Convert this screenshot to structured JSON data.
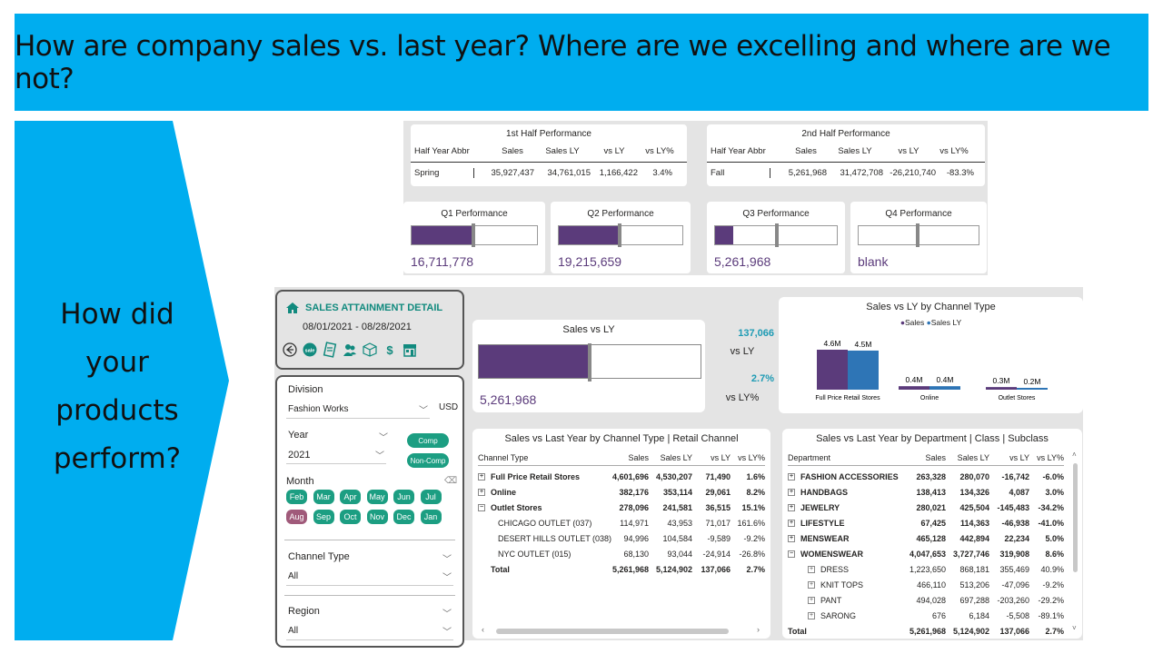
{
  "banner": {
    "title": "How are company sales vs. last year? Where are we excelling and where are we not?"
  },
  "arrow": {
    "text_lines": [
      "How did your",
      "products",
      "perform?"
    ]
  },
  "colors": {
    "banner": "#00adef",
    "purple": "#5b3b7b",
    "teal": "#1c9e82",
    "blue": "#2e75b6",
    "aug": "#a05a7a"
  },
  "half_year": [
    {
      "title": "1st Half Performance",
      "headers": [
        "Half Year Abbr",
        "Sales",
        "Sales LY",
        "vs LY",
        "vs LY%"
      ],
      "row": [
        "Spring",
        "35,927,437",
        "34,761,015",
        "1,166,422",
        "3.4%"
      ]
    },
    {
      "title": "2nd Half Performance",
      "headers": [
        "Half Year Abbr",
        "Sales",
        "Sales LY",
        "vs LY",
        "vs LY%"
      ],
      "row": [
        "Fall",
        "5,261,968",
        "31,472,708",
        "-26,210,740",
        "-83.3%"
      ]
    }
  ],
  "quarters": [
    {
      "title": "Q1 Performance",
      "value": "16,711,778",
      "fill_pct": 49,
      "target_pct": 49
    },
    {
      "title": "Q2 Performance",
      "value": "19,215,659",
      "fill_pct": 49,
      "target_pct": 49
    },
    {
      "title": "Q3 Performance",
      "value": "5,261,968",
      "fill_pct": 15,
      "target_pct": 51
    },
    {
      "title": "Q4 Performance",
      "value": "blank",
      "fill_pct": 0,
      "target_pct": 49
    }
  ],
  "detail": {
    "title": "SALES ATTAINMENT DETAIL",
    "dates": "08/01/2021 - 08/28/2021",
    "nav_icons": [
      "back-icon",
      "sale-icon",
      "invoice-icon",
      "people-icon",
      "box-icon",
      "dollar-icon",
      "store-icon"
    ]
  },
  "filters": {
    "division_label": "Division",
    "division_value": "Fashion Works",
    "currency": "USD",
    "year_label": "Year",
    "year_value": "2021",
    "comp": "Comp",
    "noncomp": "Non-Comp",
    "month_label": "Month",
    "months_row1": [
      "Feb",
      "Mar",
      "Apr",
      "May",
      "Jun",
      "Jul"
    ],
    "months_row2": [
      "Aug",
      "Sep",
      "Oct",
      "Nov",
      "Dec",
      "Jan"
    ],
    "selected_month": "Aug",
    "channel_label": "Channel Type",
    "channel_value": "All",
    "region_label": "Region",
    "region_value": "All"
  },
  "sales_vs_ly": {
    "title": "Sales vs LY",
    "value": "5,261,968",
    "fill_pct": 50,
    "target_pct": 50,
    "kpi1": "137,066",
    "kpi1_label": "vs LY",
    "kpi2": "2.7%",
    "kpi2_label": "vs LY%"
  },
  "chart_data": {
    "type": "bar",
    "title": "Sales vs LY by Channel Type",
    "categories": [
      "Full Price Retail Stores",
      "Online",
      "Outlet Stores"
    ],
    "series": [
      {
        "name": "Sales",
        "values": [
          4.6,
          0.4,
          0.3
        ],
        "labels": [
          "4.6M",
          "0.4M",
          "0.3M"
        ],
        "color": "#5b3b7b"
      },
      {
        "name": "Sales LY",
        "values": [
          4.5,
          0.4,
          0.2
        ],
        "labels": [
          "4.5M",
          "0.4M",
          "0.2M"
        ],
        "color": "#2e75b6"
      }
    ],
    "ylim": [
      0,
      4.6
    ],
    "legend": "top"
  },
  "channel_table": {
    "title": "Sales vs Last Year by Channel Type | Retail Channel",
    "headers": [
      "Channel Type",
      "Sales",
      "Sales LY",
      "vs LY",
      "vs LY%"
    ],
    "rows": [
      {
        "name": "Full Price Retail Stores",
        "vals": [
          "4,601,696",
          "4,530,207",
          "71,490",
          "1.6%"
        ],
        "bold": true,
        "exp": "+",
        "indent": 0
      },
      {
        "name": "Online",
        "vals": [
          "382,176",
          "353,114",
          "29,061",
          "8.2%"
        ],
        "bold": true,
        "exp": "+",
        "indent": 0
      },
      {
        "name": "Outlet Stores",
        "vals": [
          "278,096",
          "241,581",
          "36,515",
          "15.1%"
        ],
        "bold": true,
        "exp": "−",
        "indent": 0
      },
      {
        "name": "CHICAGO OUTLET (037)",
        "vals": [
          "114,971",
          "43,953",
          "71,017",
          "161.6%"
        ],
        "bold": false,
        "exp": "",
        "indent": 1
      },
      {
        "name": "DESERT HILLS OUTLET (038)",
        "vals": [
          "94,996",
          "104,584",
          "-9,589",
          "-9.2%"
        ],
        "bold": false,
        "exp": "",
        "indent": 1
      },
      {
        "name": "NYC OUTLET (015)",
        "vals": [
          "68,130",
          "93,044",
          "-24,914",
          "-26.8%"
        ],
        "bold": false,
        "exp": "",
        "indent": 1
      },
      {
        "name": "Total",
        "vals": [
          "5,261,968",
          "5,124,902",
          "137,066",
          "2.7%"
        ],
        "bold": true,
        "exp": "",
        "indent": 0
      }
    ]
  },
  "dept_table": {
    "title": "Sales vs Last Year by Department | Class | Subclass",
    "headers": [
      "Department",
      "Sales",
      "Sales LY",
      "vs LY",
      "vs LY%"
    ],
    "rows": [
      {
        "name": "FASHION ACCESSORIES",
        "vals": [
          "263,328",
          "280,070",
          "-16,742",
          "-6.0%"
        ],
        "bold": true,
        "exp": "+",
        "indent": 0
      },
      {
        "name": "HANDBAGS",
        "vals": [
          "138,413",
          "134,326",
          "4,087",
          "3.0%"
        ],
        "bold": true,
        "exp": "+",
        "indent": 0
      },
      {
        "name": "JEWELRY",
        "vals": [
          "280,021",
          "425,504",
          "-145,483",
          "-34.2%"
        ],
        "bold": true,
        "exp": "+",
        "indent": 0
      },
      {
        "name": "LIFESTYLE",
        "vals": [
          "67,425",
          "114,363",
          "-46,938",
          "-41.0%"
        ],
        "bold": true,
        "exp": "+",
        "indent": 0
      },
      {
        "name": "MENSWEAR",
        "vals": [
          "465,128",
          "442,894",
          "22,234",
          "5.0%"
        ],
        "bold": true,
        "exp": "+",
        "indent": 0
      },
      {
        "name": "WOMENSWEAR",
        "vals": [
          "4,047,653",
          "3,727,746",
          "319,908",
          "8.6%"
        ],
        "bold": true,
        "exp": "−",
        "indent": 0
      },
      {
        "name": "DRESS",
        "vals": [
          "1,223,650",
          "868,181",
          "355,469",
          "40.9%"
        ],
        "bold": false,
        "exp": "+",
        "indent": 1
      },
      {
        "name": "KNIT TOPS",
        "vals": [
          "466,110",
          "513,206",
          "-47,096",
          "-9.2%"
        ],
        "bold": false,
        "exp": "+",
        "indent": 1
      },
      {
        "name": "PANT",
        "vals": [
          "494,028",
          "697,288",
          "-203,260",
          "-29.2%"
        ],
        "bold": false,
        "exp": "+",
        "indent": 1
      },
      {
        "name": "SARONG",
        "vals": [
          "676",
          "6,184",
          "-5,508",
          "-89.1%"
        ],
        "bold": false,
        "exp": "+",
        "indent": 1
      },
      {
        "name": "Total",
        "vals": [
          "5,261,968",
          "5,124,902",
          "137,066",
          "2.7%"
        ],
        "bold": true,
        "exp": "",
        "indent": 0
      }
    ]
  }
}
